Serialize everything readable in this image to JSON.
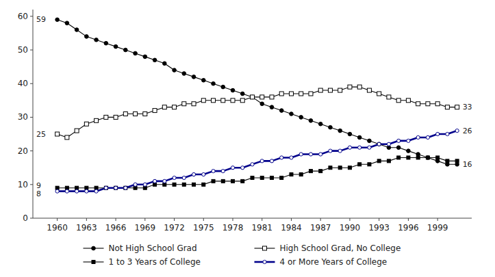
{
  "chart_data": {
    "type": "line",
    "x": [
      1960,
      1961,
      1962,
      1963,
      1964,
      1965,
      1966,
      1967,
      1968,
      1969,
      1970,
      1971,
      1972,
      1973,
      1974,
      1975,
      1976,
      1977,
      1978,
      1979,
      1980,
      1981,
      1982,
      1983,
      1984,
      1985,
      1986,
      1987,
      1988,
      1989,
      1990,
      1991,
      1992,
      1993,
      1994,
      1995,
      1996,
      1997,
      1998,
      1999,
      2000,
      2001
    ],
    "series": [
      {
        "name": "Not High School Grad",
        "color": "#000000",
        "marker": "circle",
        "values": [
          59,
          58,
          56,
          54,
          53,
          52,
          51,
          50,
          49,
          48,
          47,
          46,
          44,
          43,
          42,
          41,
          40,
          39,
          38,
          37,
          36,
          34,
          33,
          32,
          31,
          30,
          29,
          28,
          27,
          26,
          25,
          24,
          23,
          22,
          21,
          21,
          20,
          19,
          18,
          17,
          16,
          16
        ]
      },
      {
        "name": "High School Grad, No College",
        "color": "#000000",
        "marker": "square-open",
        "values": [
          25,
          24,
          26,
          28,
          29,
          30,
          30,
          31,
          31,
          31,
          32,
          33,
          33,
          34,
          34,
          35,
          35,
          35,
          35,
          35,
          36,
          36,
          36,
          37,
          37,
          37,
          37,
          38,
          38,
          38,
          39,
          39,
          38,
          37,
          36,
          35,
          35,
          34,
          34,
          34,
          33,
          33
        ]
      },
      {
        "name": "1 to 3 Years of College",
        "color": "#000000",
        "marker": "square",
        "values": [
          9,
          9,
          9,
          9,
          9,
          9,
          9,
          9,
          9,
          9,
          10,
          10,
          10,
          10,
          10,
          10,
          11,
          11,
          11,
          11,
          12,
          12,
          12,
          12,
          13,
          13,
          14,
          14,
          15,
          15,
          15,
          16,
          16,
          17,
          17,
          18,
          18,
          18,
          18,
          18,
          17,
          17
        ]
      },
      {
        "name": "4 or More Years of College",
        "color": "#00008B",
        "marker": "circle-open",
        "values": [
          8,
          8,
          8,
          8,
          8,
          9,
          9,
          9,
          10,
          10,
          11,
          11,
          12,
          12,
          13,
          13,
          14,
          14,
          15,
          15,
          16,
          17,
          17,
          18,
          18,
          19,
          19,
          19,
          20,
          20,
          21,
          21,
          21,
          22,
          22,
          23,
          23,
          24,
          24,
          25,
          25,
          26
        ]
      }
    ],
    "annotations": [
      {
        "text": "33",
        "x": 2001,
        "y": 33
      },
      {
        "text": "26",
        "x": 2001,
        "y": 26
      },
      {
        "text": "16",
        "x": 2001,
        "y": 16
      },
      {
        "text": "59",
        "x": 1960,
        "y": 59
      },
      {
        "text": "25",
        "x": 1960,
        "y": 25
      },
      {
        "text": "9",
        "x": 1960,
        "y": 9
      },
      {
        "text": "8",
        "x": 1960,
        "y": 8
      }
    ],
    "xlim": [
      1957.5,
      2002.5
    ],
    "xticks": [
      1960,
      1963,
      1966,
      1969,
      1972,
      1975,
      1978,
      1981,
      1984,
      1987,
      1990,
      1993,
      1996,
      1999
    ],
    "ylim": [
      0,
      62
    ],
    "yticks": [
      0,
      10,
      20,
      30,
      40,
      50,
      60
    ],
    "grid": false,
    "legend": "bottom"
  }
}
